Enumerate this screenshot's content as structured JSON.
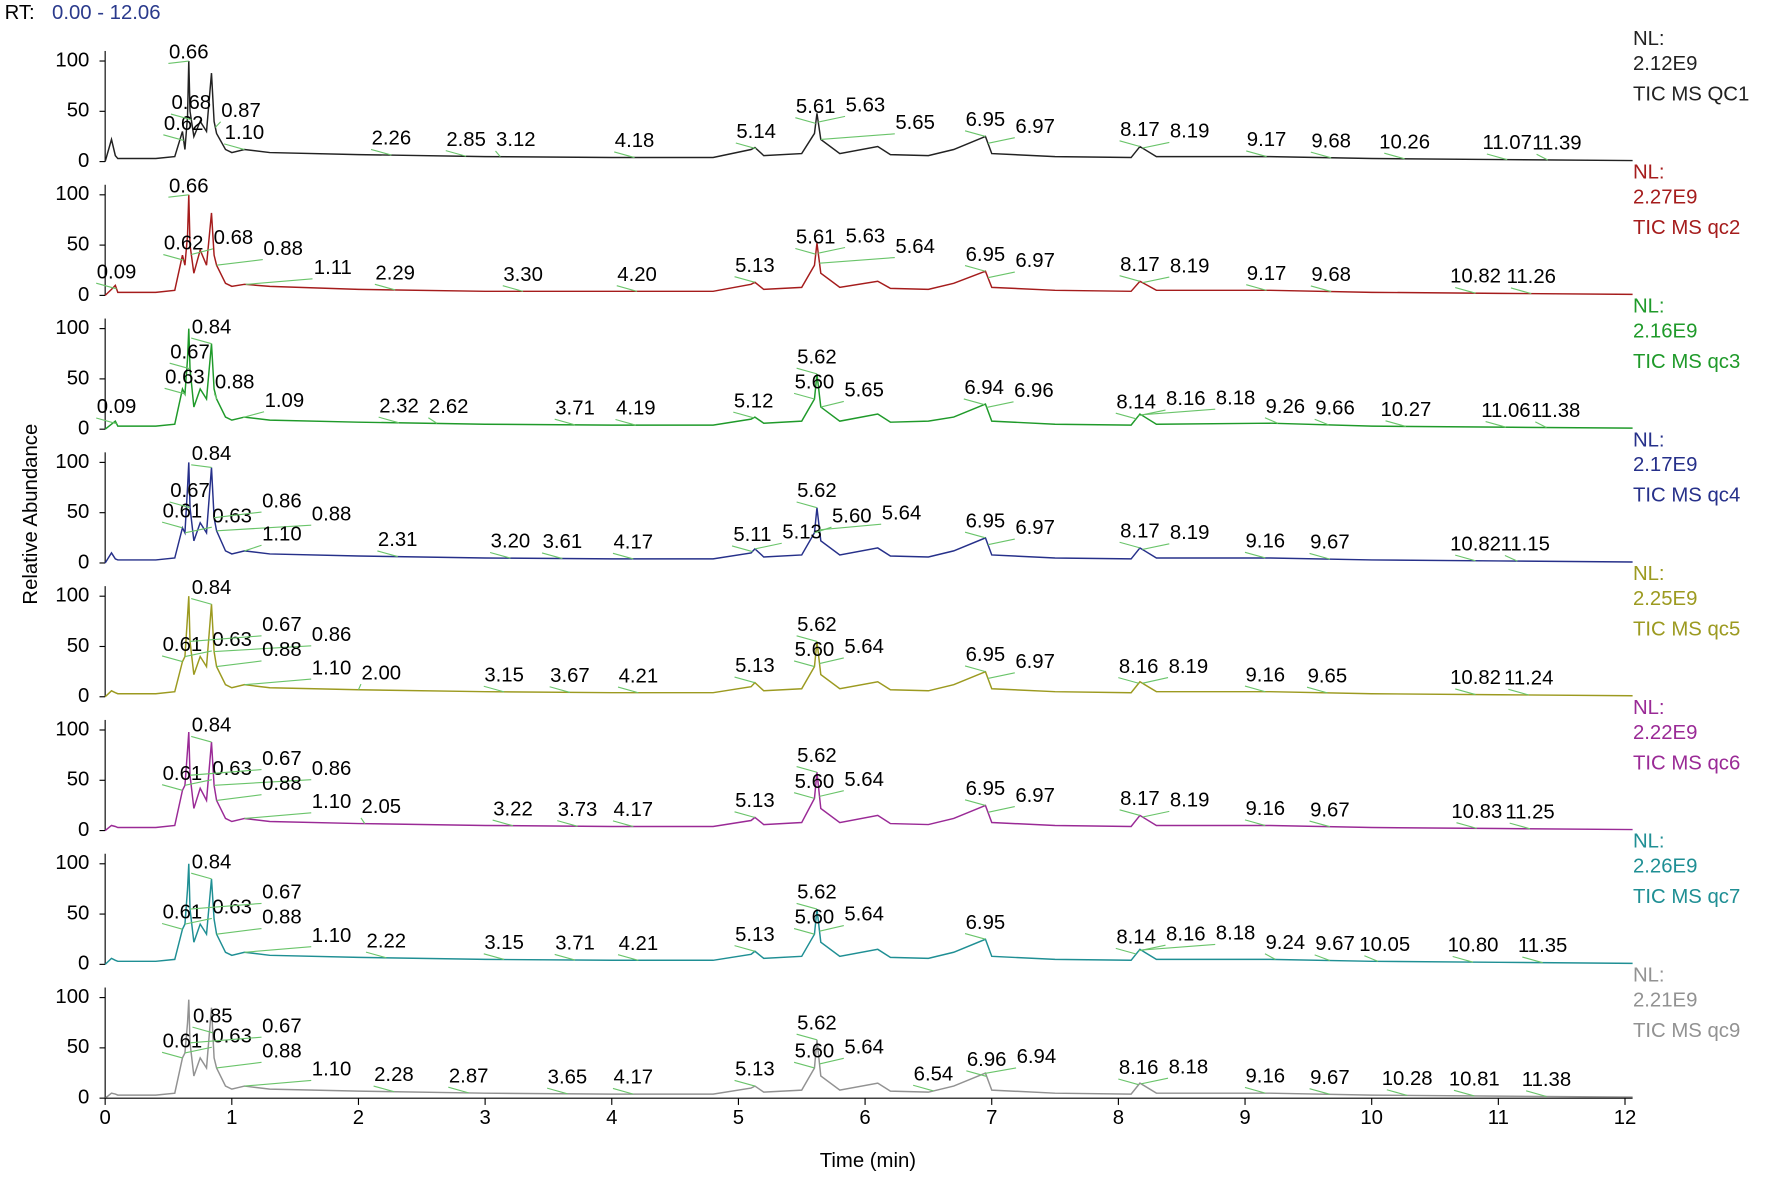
{
  "chart_data": {
    "type": "line",
    "rt_prefix": "RT:",
    "rt_range": "0.00 - 12.06",
    "xlabel": "Time (min)",
    "ylabel": "Relative Abundance",
    "nl_prefix": "NL:",
    "xlim": [
      0,
      12.06
    ],
    "xticks": [
      0,
      1,
      2,
      3,
      4,
      5,
      6,
      7,
      8,
      9,
      10,
      11,
      12
    ],
    "ylim": [
      0,
      110
    ],
    "yticks": [
      0,
      50,
      100
    ],
    "x": [
      0,
      0.05,
      0.08,
      0.1,
      0.2,
      0.4,
      0.55,
      0.61,
      0.63,
      0.65,
      0.66,
      0.67,
      0.7,
      0.75,
      0.8,
      0.84,
      0.86,
      0.88,
      0.95,
      1.0,
      1.1,
      1.3,
      2,
      3,
      4,
      4.8,
      5.1,
      5.13,
      5.2,
      5.5,
      5.6,
      5.62,
      5.65,
      5.8,
      6.1,
      6.2,
      6.5,
      6.7,
      6.95,
      7,
      7.5,
      8.1,
      8.17,
      8.3,
      9.2,
      10,
      11,
      12.06
    ],
    "series": [
      {
        "name": "TIC  MS QC1",
        "color": "#222222",
        "nl": {
          "value": 2120000000,
          "label": "2.12E9"
        },
        "values": [
          0,
          22,
          6,
          3,
          3,
          3,
          5,
          30,
          12,
          45,
          100,
          50,
          25,
          40,
          30,
          88,
          40,
          28,
          12,
          9,
          12,
          9,
          7,
          5,
          4,
          4,
          12,
          14,
          6,
          8,
          28,
          48,
          22,
          8,
          15,
          7,
          6,
          12,
          25,
          8,
          5,
          4,
          15,
          5,
          5,
          3,
          2,
          1
        ],
        "peaks": [
          0.62,
          0.66,
          0.68,
          0.87,
          1.1,
          2.26,
          2.85,
          3.12,
          4.18,
          5.14,
          5.61,
          5.63,
          5.65,
          6.95,
          6.97,
          8.17,
          8.19,
          9.17,
          9.68,
          10.26,
          11.07,
          11.39
        ],
        "peak_labels": [
          "0.62",
          "0.66",
          "0.68",
          "0.87",
          "1.10",
          "2.26",
          "2.85",
          "3.12",
          "4.18",
          "5.14",
          "5.61",
          "5.63",
          "5.65",
          "6.95",
          "6.97",
          "8.17",
          "8.19",
          "9.17",
          "9.68",
          "10.26",
          "11.07",
          "11.39"
        ]
      },
      {
        "name": "TIC  MS qc2",
        "color": "#a51c1c",
        "nl": {
          "value": 2270000000,
          "label": "2.27E9"
        },
        "values": [
          0,
          6,
          10,
          3,
          3,
          3,
          5,
          40,
          30,
          60,
          100,
          50,
          22,
          45,
          30,
          82,
          40,
          30,
          12,
          9,
          11,
          9,
          6,
          4,
          4,
          4,
          11,
          13,
          6,
          8,
          30,
          52,
          22,
          8,
          14,
          7,
          6,
          12,
          24,
          8,
          5,
          4,
          14,
          5,
          5,
          3,
          2,
          1
        ],
        "peaks": [
          0.09,
          0.62,
          0.66,
          0.68,
          0.88,
          1.11,
          2.29,
          3.3,
          4.2,
          5.13,
          5.61,
          5.63,
          5.64,
          6.95,
          6.97,
          8.17,
          8.19,
          9.17,
          9.68,
          10.82,
          11.26
        ],
        "peak_labels": [
          "0.09",
          "0.62",
          "0.66",
          "0.68",
          "0.88",
          "1.11",
          "2.29",
          "3.30",
          "4.20",
          "5.13",
          "5.61",
          "5.63",
          "5.64",
          "6.95",
          "6.97",
          "8.17",
          "8.19",
          "9.17",
          "9.68",
          "10.82",
          "11.26"
        ]
      },
      {
        "name": "TIC  MS qc3",
        "color": "#1f9a2a",
        "nl": {
          "value": 2160000000,
          "label": "2.16E9"
        },
        "values": [
          0,
          5,
          8,
          3,
          3,
          3,
          5,
          40,
          35,
          70,
          100,
          60,
          22,
          40,
          30,
          85,
          40,
          30,
          12,
          9,
          12,
          9,
          7,
          5,
          4,
          4,
          10,
          12,
          6,
          8,
          30,
          55,
          22,
          8,
          15,
          7,
          8,
          12,
          25,
          8,
          5,
          4,
          15,
          5,
          6,
          3,
          2,
          1
        ],
        "peaks": [
          0.09,
          0.63,
          0.67,
          0.84,
          0.88,
          1.09,
          2.32,
          2.62,
          3.71,
          4.19,
          5.12,
          5.6,
          5.62,
          5.65,
          6.94,
          6.96,
          8.14,
          8.16,
          8.18,
          9.26,
          9.66,
          10.27,
          11.06,
          11.38
        ],
        "peak_labels": [
          "0.09",
          "0.63",
          "0.67",
          "0.84",
          "0.88",
          "1.09",
          "2.32",
          "2.62",
          "3.71",
          "4.19",
          "5.12",
          "5.60",
          "5.62",
          "5.65",
          "6.94",
          "6.96",
          "8.14",
          "8.16",
          "8.18",
          "9.26",
          "9.66",
          "10.27",
          "11.06",
          "11.38"
        ]
      },
      {
        "name": "TIC  MS qc4",
        "color": "#26308a",
        "nl": {
          "value": 2170000000,
          "label": "2.17E9"
        },
        "values": [
          0,
          10,
          4,
          3,
          3,
          3,
          5,
          35,
          30,
          75,
          100,
          55,
          22,
          40,
          30,
          95,
          45,
          32,
          12,
          9,
          12,
          9,
          7,
          5,
          4,
          4,
          10,
          14,
          6,
          8,
          30,
          55,
          22,
          8,
          15,
          7,
          6,
          12,
          25,
          8,
          5,
          4,
          15,
          5,
          5,
          3,
          2,
          1
        ],
        "peaks": [
          0.61,
          0.63,
          0.67,
          0.84,
          0.86,
          0.88,
          1.1,
          2.31,
          3.2,
          3.61,
          4.17,
          5.11,
          5.13,
          5.6,
          5.62,
          5.64,
          6.95,
          6.97,
          8.17,
          8.19,
          9.16,
          9.67,
          10.82,
          11.15
        ],
        "peak_labels": [
          "0.61",
          "0.63",
          "0.67",
          "0.84",
          "0.86",
          "0.88",
          "1.10",
          "2.31",
          "3.20",
          "3.61",
          "4.17",
          "5.11",
          "5.13",
          "5.60",
          "5.62",
          "5.64",
          "6.95",
          "6.97",
          "8.17",
          "8.19",
          "9.16",
          "9.67",
          "10.82",
          "11.15"
        ]
      },
      {
        "name": "TIC  MS qc5",
        "color": "#9c9a20",
        "nl": {
          "value": 2250000000,
          "label": "2.25E9"
        },
        "values": [
          0,
          6,
          4,
          3,
          3,
          3,
          5,
          35,
          40,
          80,
          100,
          55,
          22,
          40,
          30,
          92,
          45,
          30,
          12,
          9,
          12,
          9,
          7,
          5,
          4,
          4,
          10,
          14,
          6,
          8,
          30,
          55,
          22,
          8,
          15,
          7,
          6,
          12,
          25,
          8,
          5,
          4,
          15,
          5,
          5,
          3,
          2,
          1
        ],
        "peaks": [
          0.61,
          0.63,
          0.67,
          0.84,
          0.86,
          0.88,
          1.1,
          2.0,
          3.15,
          3.67,
          4.21,
          5.13,
          5.6,
          5.62,
          5.64,
          6.95,
          6.97,
          8.16,
          8.19,
          9.16,
          9.65,
          10.82,
          11.24
        ],
        "peak_labels": [
          "0.61",
          "0.63",
          "0.67",
          "0.84",
          "0.86",
          "0.88",
          "1.10",
          "2.00",
          "3.15",
          "3.67",
          "4.21",
          "5.13",
          "5.60",
          "5.62",
          "5.64",
          "6.95",
          "6.97",
          "8.16",
          "8.19",
          "9.16",
          "9.65",
          "10.82",
          "11.24"
        ]
      },
      {
        "name": "TIC  MS qc6",
        "color": "#9a2a96",
        "nl": {
          "value": 2220000000,
          "label": "2.22E9"
        },
        "values": [
          0,
          5,
          4,
          3,
          3,
          3,
          5,
          40,
          45,
          80,
          98,
          55,
          22,
          42,
          30,
          88,
          45,
          30,
          12,
          9,
          12,
          9,
          7,
          5,
          4,
          4,
          10,
          13,
          6,
          8,
          32,
          58,
          22,
          8,
          15,
          7,
          6,
          12,
          25,
          8,
          5,
          4,
          15,
          5,
          5,
          3,
          2,
          1
        ],
        "peaks": [
          0.61,
          0.63,
          0.67,
          0.84,
          0.86,
          0.88,
          1.1,
          2.05,
          3.22,
          3.73,
          4.17,
          5.13,
          5.6,
          5.62,
          5.64,
          6.95,
          6.97,
          8.17,
          8.19,
          9.16,
          9.67,
          10.83,
          11.25
        ],
        "peak_labels": [
          "0.61",
          "0.63",
          "0.67",
          "0.84",
          "0.86",
          "0.88",
          "1.10",
          "2.05",
          "3.22",
          "3.73",
          "4.17",
          "5.13",
          "5.60",
          "5.62",
          "5.64",
          "6.95",
          "6.97",
          "8.17",
          "8.19",
          "9.16",
          "9.67",
          "10.83",
          "11.25"
        ]
      },
      {
        "name": "TIC  MS qc7",
        "color": "#1f8f94",
        "nl": {
          "value": 2260000000,
          "label": "2.26E9"
        },
        "values": [
          0,
          6,
          4,
          3,
          3,
          3,
          5,
          35,
          40,
          75,
          100,
          55,
          22,
          40,
          30,
          85,
          45,
          30,
          12,
          9,
          12,
          9,
          7,
          5,
          4,
          4,
          10,
          13,
          6,
          8,
          30,
          55,
          22,
          8,
          15,
          7,
          6,
          12,
          25,
          8,
          5,
          4,
          15,
          5,
          5,
          3,
          2,
          1
        ],
        "peaks": [
          0.61,
          0.63,
          0.67,
          0.84,
          0.88,
          1.1,
          2.22,
          3.15,
          3.71,
          4.21,
          5.13,
          5.6,
          5.62,
          5.64,
          6.95,
          8.14,
          8.16,
          8.18,
          9.24,
          9.67,
          10.05,
          10.8,
          11.35
        ],
        "peak_labels": [
          "0.61",
          "0.63",
          "0.67",
          "0.84",
          "0.88",
          "1.10",
          "2.22",
          "3.15",
          "3.71",
          "4.21",
          "5.13",
          "5.60",
          "5.62",
          "5.64",
          "6.95",
          "8.14",
          "8.16",
          "8.18",
          "9.24",
          "9.67",
          "10.05",
          "10.80",
          "11.35"
        ]
      },
      {
        "name": "TIC  MS qc9",
        "color": "#929292",
        "nl": {
          "value": 2210000000,
          "label": "2.21E9"
        },
        "values": [
          0,
          5,
          4,
          3,
          3,
          3,
          5,
          40,
          45,
          75,
          98,
          55,
          22,
          40,
          30,
          90,
          40,
          30,
          12,
          9,
          12,
          9,
          7,
          5,
          4,
          4,
          10,
          12,
          6,
          8,
          30,
          58,
          22,
          8,
          15,
          7,
          6,
          12,
          25,
          8,
          5,
          4,
          15,
          5,
          5,
          3,
          2,
          1
        ],
        "peaks": [
          0.61,
          0.63,
          0.67,
          0.85,
          0.88,
          1.1,
          2.28,
          2.87,
          3.65,
          4.17,
          5.13,
          5.6,
          5.62,
          5.64,
          6.54,
          6.96,
          6.94,
          8.16,
          8.18,
          9.16,
          9.67,
          10.28,
          10.81,
          11.38
        ],
        "peak_labels": [
          "0.61",
          "0.63",
          "0.67",
          "0.85",
          "0.88",
          "1.10",
          "2.28",
          "2.87",
          "3.65",
          "4.17",
          "5.13",
          "5.60",
          "5.62",
          "5.64",
          "6.54",
          "6.96",
          "6.94",
          "8.16",
          "8.18",
          "9.16",
          "9.67",
          "10.28",
          "10.81",
          "11.38"
        ]
      }
    ]
  }
}
